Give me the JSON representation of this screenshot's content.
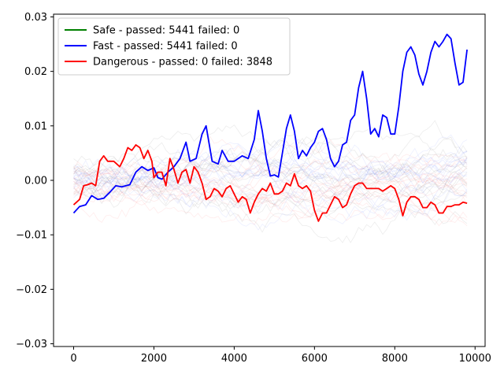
{
  "chart_data": {
    "type": "line",
    "title": "",
    "xlabel": "",
    "ylabel": "",
    "xlim": [
      -500,
      10250
    ],
    "ylim": [
      -0.0305,
      0.0305
    ],
    "xticks": [
      0,
      2000,
      4000,
      6000,
      8000,
      10000
    ],
    "xtick_labels": [
      "0",
      "2000",
      "4000",
      "6000",
      "8000",
      "10000"
    ],
    "yticks": [
      -0.03,
      -0.02,
      -0.01,
      0.0,
      0.01,
      0.02,
      0.03
    ],
    "ytick_labels": [
      "−0.03",
      "−0.02",
      "−0.01",
      "0.00",
      "0.01",
      "0.02",
      "0.03"
    ],
    "grid": false,
    "legend_position": "top-left",
    "background_traces": "many faint thin traces (light gray, pale red, pale blue) spread around zero",
    "series": [
      {
        "name": "Safe - passed: 5441 failed: 0",
        "color": "#008000",
        "x": [],
        "y": []
      },
      {
        "name": "Fast - passed: 5441 failed: 0",
        "color": "#0000ff",
        "x": [
          0,
          150,
          300,
          450,
          600,
          750,
          900,
          1050,
          1200,
          1400,
          1550,
          1700,
          1850,
          2000,
          2100,
          2200,
          2350,
          2500,
          2650,
          2800,
          2900,
          3050,
          3200,
          3300,
          3450,
          3600,
          3700,
          3850,
          4000,
          4200,
          4350,
          4500,
          4600,
          4700,
          4800,
          4900,
          5000,
          5100,
          5200,
          5300,
          5400,
          5500,
          5600,
          5700,
          5800,
          5900,
          6000,
          6100,
          6200,
          6300,
          6400,
          6500,
          6600,
          6700,
          6800,
          6900,
          7000,
          7100,
          7200,
          7300,
          7400,
          7500,
          7600,
          7700,
          7800,
          7900,
          8000,
          8100,
          8200,
          8300,
          8400,
          8500,
          8600,
          8700,
          8800,
          8900,
          9000,
          9100,
          9200,
          9300,
          9400,
          9500,
          9600,
          9700,
          9800
        ],
        "y": [
          -0.006,
          -0.0048,
          -0.0045,
          -0.0028,
          -0.0035,
          -0.0033,
          -0.0022,
          -0.001,
          -0.0012,
          -0.0008,
          0.0015,
          0.0025,
          0.0018,
          0.0023,
          0.0005,
          0.0002,
          0.0015,
          0.0025,
          0.004,
          0.007,
          0.0035,
          0.004,
          0.0085,
          0.01,
          0.0035,
          0.003,
          0.0055,
          0.0035,
          0.0035,
          0.0045,
          0.004,
          0.0075,
          0.0128,
          0.009,
          0.004,
          0.0008,
          0.001,
          0.0006,
          0.005,
          0.0095,
          0.012,
          0.009,
          0.004,
          0.0055,
          0.0045,
          0.006,
          0.007,
          0.009,
          0.0095,
          0.0075,
          0.004,
          0.0025,
          0.0035,
          0.0065,
          0.007,
          0.011,
          0.012,
          0.017,
          0.02,
          0.015,
          0.0085,
          0.0095,
          0.008,
          0.012,
          0.0115,
          0.0085,
          0.0085,
          0.0135,
          0.02,
          0.0235,
          0.0245,
          0.023,
          0.0195,
          0.0175,
          0.02,
          0.0235,
          0.0255,
          0.0245,
          0.0255,
          0.0268,
          0.026,
          0.0215,
          0.0175,
          0.018,
          0.024
        ]
      },
      {
        "name": "Dangerous - passed: 0 failed: 3848",
        "color": "#ff0000",
        "x": [
          0,
          150,
          250,
          350,
          450,
          550,
          650,
          750,
          850,
          1000,
          1150,
          1250,
          1350,
          1450,
          1550,
          1650,
          1750,
          1850,
          1950,
          2000,
          2100,
          2200,
          2300,
          2400,
          2500,
          2600,
          2700,
          2800,
          2900,
          3000,
          3100,
          3200,
          3300,
          3400,
          3500,
          3600,
          3700,
          3800,
          3900,
          4000,
          4100,
          4200,
          4300,
          4400,
          4500,
          4600,
          4700,
          4800,
          4900,
          5000,
          5100,
          5200,
          5300,
          5400,
          5500,
          5600,
          5700,
          5800,
          5900,
          6000,
          6100,
          6200,
          6300,
          6400,
          6500,
          6600,
          6700,
          6800,
          6900,
          7000,
          7100,
          7200,
          7300,
          7400,
          7500,
          7600,
          7700,
          7800,
          7900,
          8000,
          8100,
          8200,
          8300,
          8400,
          8500,
          8600,
          8700,
          8800,
          8900,
          9000,
          9100,
          9200,
          9300,
          9400,
          9500,
          9600,
          9700,
          9800
        ],
        "y": [
          -0.0045,
          -0.0035,
          -0.001,
          -0.0008,
          -0.0005,
          -0.001,
          0.0035,
          0.0045,
          0.0035,
          0.0035,
          0.0025,
          0.004,
          0.006,
          0.0055,
          0.0065,
          0.006,
          0.004,
          0.0055,
          0.0035,
          0.0005,
          0.0015,
          0.0015,
          -0.001,
          0.004,
          0.002,
          -0.0005,
          0.0015,
          0.002,
          -0.0005,
          0.0025,
          0.0015,
          -0.0005,
          -0.0035,
          -0.003,
          -0.0015,
          -0.002,
          -0.003,
          -0.0015,
          -0.001,
          -0.0025,
          -0.004,
          -0.003,
          -0.0035,
          -0.006,
          -0.004,
          -0.0025,
          -0.0015,
          -0.002,
          -0.0005,
          -0.0025,
          -0.0025,
          -0.002,
          -0.0005,
          -0.001,
          0.0012,
          -0.001,
          -0.0015,
          -0.001,
          -0.002,
          -0.0055,
          -0.0075,
          -0.006,
          -0.006,
          -0.0045,
          -0.003,
          -0.0035,
          -0.005,
          -0.0045,
          -0.0025,
          -0.001,
          -0.0005,
          -0.0005,
          -0.0015,
          -0.0015,
          -0.0015,
          -0.0015,
          -0.002,
          -0.0015,
          -0.001,
          -0.0015,
          -0.0035,
          -0.0065,
          -0.004,
          -0.003,
          -0.003,
          -0.0035,
          -0.005,
          -0.005,
          -0.004,
          -0.0045,
          -0.006,
          -0.006,
          -0.0048,
          -0.0048,
          -0.0045,
          -0.0045,
          -0.004,
          -0.0042
        ]
      }
    ]
  }
}
